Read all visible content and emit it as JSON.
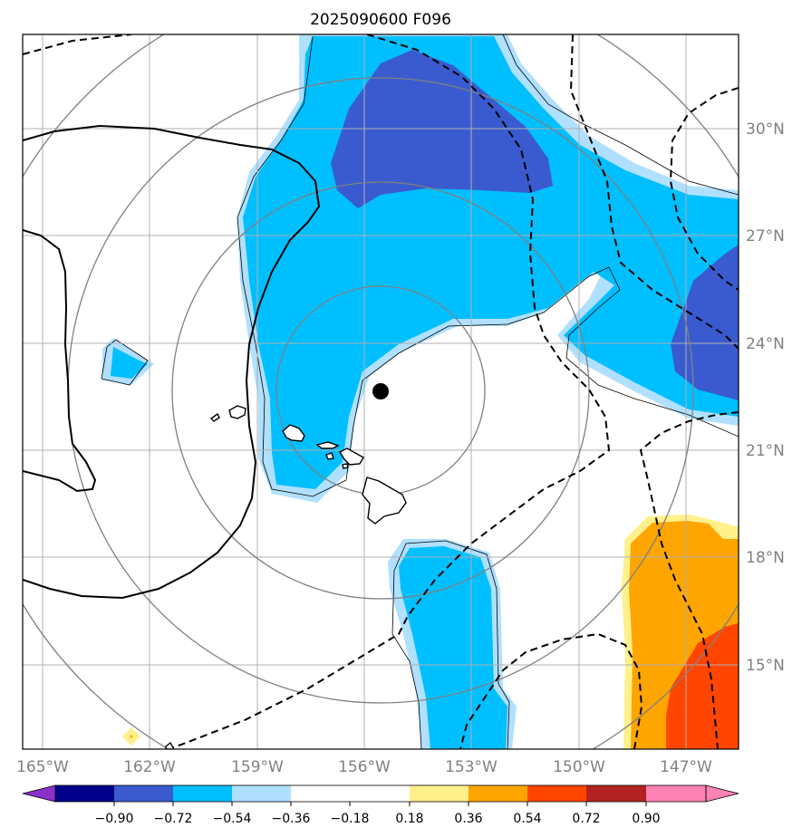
{
  "title": "2025090600 F096",
  "axes": {
    "lon_ticks": [
      {
        "value": -165,
        "label": "165°W"
      },
      {
        "value": -162,
        "label": "162°W"
      },
      {
        "value": -159,
        "label": "159°W"
      },
      {
        "value": -156,
        "label": "156°W"
      },
      {
        "value": -153,
        "label": "153°W"
      },
      {
        "value": -150,
        "label": "150°W"
      },
      {
        "value": -147,
        "label": "147°W"
      }
    ],
    "lat_ticks": [
      {
        "value": 30,
        "label": "30°N"
      },
      {
        "value": 27,
        "label": "27°N"
      },
      {
        "value": 24,
        "label": "24°N"
      },
      {
        "value": 21,
        "label": "21°N"
      },
      {
        "value": 18,
        "label": "18°N"
      },
      {
        "value": 15,
        "label": "15°N"
      }
    ],
    "lon_range": [
      -165.6,
      -145.6
    ],
    "lat_range": [
      12.7,
      32.7
    ]
  },
  "storm_center": {
    "lon": -155.5,
    "lat": 22.6
  },
  "range_rings_deg": [
    3,
    6,
    9,
    12
  ],
  "colorbar": {
    "labels": [
      "−0.90",
      "−0.72",
      "−0.54",
      "−0.36",
      "−0.18",
      "0.18",
      "0.36",
      "0.54",
      "0.72",
      "0.90"
    ],
    "colors": [
      "#8b2fc9",
      "#00008b",
      "#3a5bcf",
      "#00bfff",
      "#b0e0ff",
      "#ffffff",
      "#fff08a",
      "#ffa500",
      "#ff4500",
      "#b22222",
      "#ff82b4"
    ]
  },
  "colors": {
    "grid": "#b0b0b0",
    "ring": "#808080",
    "contour": "#000000",
    "center": "#000000"
  }
}
